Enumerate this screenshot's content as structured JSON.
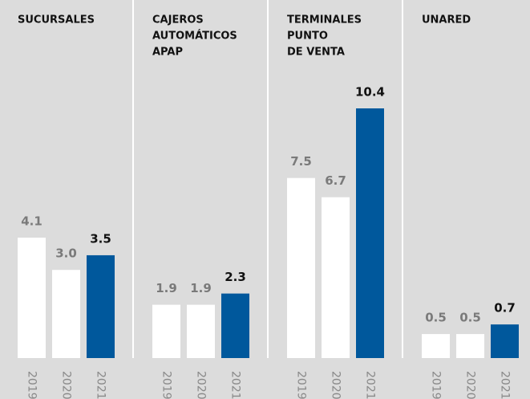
{
  "chart_data": [
    {
      "type": "bar",
      "title": [
        "SUCURSALES"
      ],
      "categories": [
        "2019",
        "2020",
        "2021"
      ],
      "values": [
        4.1,
        3.0,
        3.5
      ],
      "value_labels": [
        "4.1",
        "3.0",
        "3.5"
      ],
      "colors": [
        "#ffffff",
        "#ffffff",
        "#00589c"
      ],
      "label_colors": [
        "#7a7a7a",
        "#7a7a7a",
        "#111111"
      ],
      "ylim": [
        0,
        8.5
      ]
    },
    {
      "type": "bar",
      "title": [
        "CAJEROS",
        "AUTOMÁTICOS",
        "APAP"
      ],
      "categories": [
        "2019",
        "2020",
        "2021"
      ],
      "values": [
        1.9,
        1.9,
        2.3
      ],
      "colors": [
        "#ffffff",
        "#ffffff",
        "#00589c"
      ],
      "label_colors": [
        "#7a7a7a",
        "#7a7a7a",
        "#111111"
      ],
      "ylim": [
        0,
        8.9
      ]
    },
    {
      "type": "bar",
      "title": [
        "TERMINALES",
        "PUNTO",
        "DE VENTA"
      ],
      "categories": [
        "2019",
        "2020",
        "2021"
      ],
      "values": [
        7.5,
        6.7,
        10.4
      ],
      "colors": [
        "#ffffff",
        "#ffffff",
        "#00589c"
      ],
      "label_colors": [
        "#7a7a7a",
        "#7a7a7a",
        "#111111"
      ],
      "ylim": [
        0,
        10.4
      ]
    },
    {
      "type": "bar",
      "title": [
        "UNARED"
      ],
      "categories": [
        "2019",
        "2020",
        "2021"
      ],
      "values": [
        0.5,
        0.5,
        0.7
      ],
      "colors": [
        "#ffffff",
        "#ffffff",
        "#00589c"
      ],
      "label_colors": [
        "#7a7a7a",
        "#7a7a7a",
        "#111111"
      ],
      "ylim": [
        0,
        5.2
      ]
    }
  ]
}
